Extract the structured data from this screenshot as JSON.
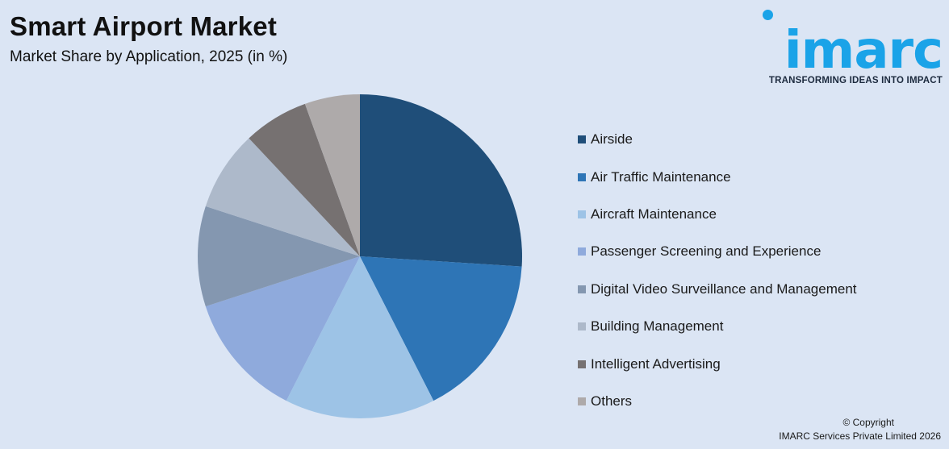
{
  "header": {
    "title": "Smart Airport Market",
    "subtitle": "Market Share by Application, 2025 (in %)"
  },
  "logo": {
    "word": "imarc",
    "tagline": "TRANSFORMING IDEAS INTO IMPACT",
    "color": "#1aa3e8"
  },
  "footer": {
    "copyright": "© Copyright",
    "company": "IMARC Services Private Limited 2026"
  },
  "chart_data": {
    "type": "pie",
    "title": "Smart Airport Market",
    "subtitle": "Market Share by Application, 2025 (in %)",
    "legend_position": "right",
    "start_angle": "12 o'clock, clockwise",
    "slices": [
      {
        "label": "Airside",
        "value": 26,
        "color": "#1f4e79"
      },
      {
        "label": "Air Traffic Maintenance",
        "value": 16.5,
        "color": "#2e75b6"
      },
      {
        "label": "Aircraft Maintenance",
        "value": 15,
        "color": "#9dc3e6"
      },
      {
        "label": "Passenger Screening and Experience",
        "value": 12.5,
        "color": "#8faadc"
      },
      {
        "label": "Digital Video Surveillance and Management",
        "value": 10,
        "color": "#8497b0"
      },
      {
        "label": "Building Management",
        "value": 8,
        "color": "#adb9ca"
      },
      {
        "label": "Intelligent Advertising",
        "value": 6.5,
        "color": "#767171"
      },
      {
        "label": "Others",
        "value": 5.5,
        "color": "#aeaaaa"
      }
    ]
  }
}
